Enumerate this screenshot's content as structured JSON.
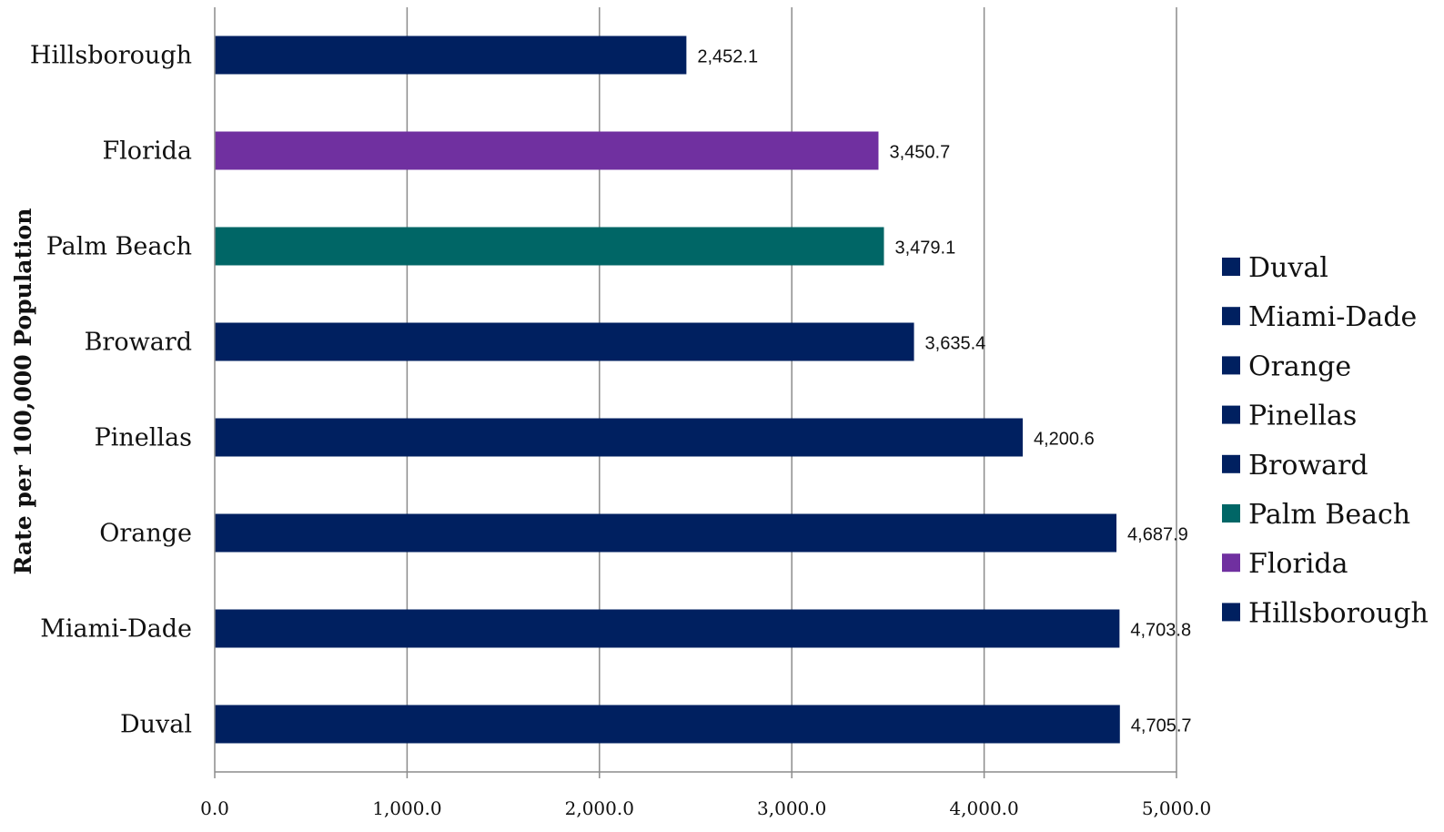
{
  "chart_data": {
    "type": "bar",
    "orientation": "horizontal",
    "title": "",
    "xlabel": "",
    "ylabel": "Rate per 100,000 Population",
    "categories": [
      "Duval",
      "Miami-Dade",
      "Orange",
      "Pinellas",
      "Broward",
      "Palm Beach",
      "Florida",
      "Hillsborough"
    ],
    "values": [
      4705.7,
      4703.8,
      4687.9,
      4200.6,
      3635.4,
      3479.1,
      3450.7,
      2452.1
    ],
    "value_labels": [
      "4,705.7",
      "4,703.8",
      "4,687.9",
      "4,200.6",
      "3,635.4",
      "3,479.1",
      "3,450.7",
      "2,452.1"
    ],
    "colors": [
      "#002060",
      "#002060",
      "#002060",
      "#002060",
      "#002060",
      "#006666",
      "#7030A0",
      "#002060"
    ],
    "xlim": [
      0,
      5000
    ],
    "xticks": [
      "0.0",
      "1,000.0",
      "2,000.0",
      "3,000.0",
      "4,000.0",
      "5,000.0"
    ],
    "grid": "vertical",
    "legend_position": "right",
    "legend": [
      {
        "label": "Duval",
        "color": "#002060"
      },
      {
        "label": "Miami-Dade",
        "color": "#002060"
      },
      {
        "label": "Orange",
        "color": "#002060"
      },
      {
        "label": "Pinellas",
        "color": "#002060"
      },
      {
        "label": "Broward",
        "color": "#002060"
      },
      {
        "label": "Palm Beach",
        "color": "#006666"
      },
      {
        "label": "Florida",
        "color": "#7030A0"
      },
      {
        "label": "Hillsborough",
        "color": "#002060"
      }
    ]
  }
}
